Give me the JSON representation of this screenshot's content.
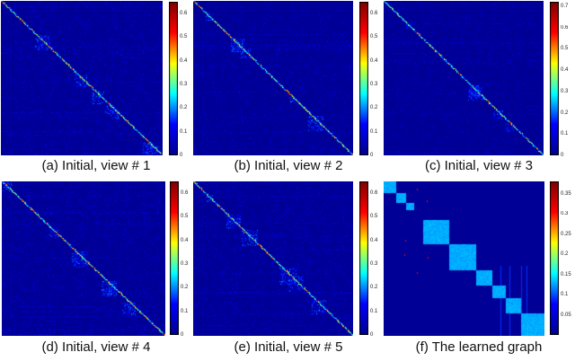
{
  "chart_data": [
    {
      "type": "heatmap",
      "caption": "(a) Initial, view # 1",
      "colorbar": {
        "min": 0,
        "max": 0.65,
        "ticks": [
          "0.6",
          "0.5",
          "0.4",
          "0.3",
          "0.2",
          "0.1",
          "0"
        ],
        "tick_values": [
          0.6,
          0.5,
          0.4,
          0.3,
          0.2,
          0.1,
          0
        ]
      },
      "pattern": "sparse-diagonal",
      "diag_peak": 0.6,
      "noise_density": 0.12
    },
    {
      "type": "heatmap",
      "caption": "(b) Initial, view # 2",
      "colorbar": {
        "min": 0,
        "max": 0.65,
        "ticks": [
          "0.6",
          "0.5",
          "0.4",
          "0.3",
          "0.2",
          "0.1",
          "0"
        ],
        "tick_values": [
          0.6,
          0.5,
          0.4,
          0.3,
          0.2,
          0.1,
          0
        ]
      },
      "pattern": "sparse-diagonal",
      "diag_peak": 0.62,
      "noise_density": 0.1
    },
    {
      "type": "heatmap",
      "caption": "(c) Initial, view # 3",
      "colorbar": {
        "min": 0,
        "max": 0.72,
        "ticks": [
          "0.7",
          "0.6",
          "0.5",
          "0.4",
          "0.3",
          "0.2",
          "0.1",
          "0"
        ],
        "tick_values": [
          0.7,
          0.6,
          0.5,
          0.4,
          0.3,
          0.2,
          0.1,
          0
        ]
      },
      "pattern": "sparse-diagonal",
      "diag_peak": 0.7,
      "noise_density": 0.1
    },
    {
      "type": "heatmap",
      "caption": "(d) Initial, view # 4",
      "colorbar": {
        "min": 0,
        "max": 0.65,
        "ticks": [
          "0.6",
          "0.5",
          "0.4",
          "0.3",
          "0.2",
          "0.1",
          "0"
        ],
        "tick_values": [
          0.6,
          0.5,
          0.4,
          0.3,
          0.2,
          0.1,
          0
        ]
      },
      "pattern": "sparse-diagonal",
      "diag_peak": 0.55,
      "noise_density": 0.12
    },
    {
      "type": "heatmap",
      "caption": "(e) Initial, view # 5",
      "colorbar": {
        "min": 0,
        "max": 0.65,
        "ticks": [
          "0.6",
          "0.5",
          "0.4",
          "0.3",
          "0.2",
          "0.1",
          "0"
        ],
        "tick_values": [
          0.6,
          0.5,
          0.4,
          0.3,
          0.2,
          0.1,
          0
        ]
      },
      "pattern": "sparse-diagonal",
      "diag_peak": 0.55,
      "noise_density": 0.12
    },
    {
      "type": "heatmap",
      "caption": "(f) The learned graph",
      "colorbar": {
        "min": 0,
        "max": 0.38,
        "ticks": [
          "0.35",
          "0.3",
          "0.25",
          "0.2",
          "0.15",
          "0.1",
          "0.05"
        ],
        "tick_values": [
          0.35,
          0.3,
          0.25,
          0.2,
          0.15,
          0.1,
          0.05
        ]
      },
      "pattern": "block-diagonal",
      "blocks": [
        [
          0,
          0.08
        ],
        [
          0.08,
          0.14
        ],
        [
          0.14,
          0.19
        ],
        [
          0.25,
          0.41
        ],
        [
          0.41,
          0.58
        ],
        [
          0.58,
          0.68
        ],
        [
          0.68,
          0.76
        ],
        [
          0.76,
          0.86
        ],
        [
          0.86,
          1.0
        ]
      ],
      "block_value": 0.12
    }
  ],
  "colormap": [
    "#00008f",
    "#0000ff",
    "#00ffff",
    "#ffff00",
    "#ff0000",
    "#800000"
  ]
}
